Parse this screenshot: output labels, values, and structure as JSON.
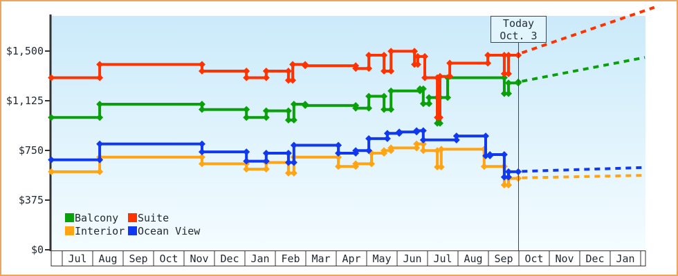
{
  "today_marker": {
    "line1": "Today",
    "line2": "Oct. 3"
  },
  "colors": {
    "frame": "#eca55e",
    "axis": "#333333",
    "grid_box": "#333333",
    "today_line": "#444444",
    "text": "#222933",
    "plot_bg_top": "#cbeafa",
    "plot_bg_bottom": "#f4fcff",
    "month_row_bg": "#ffffff"
  },
  "chart_data": {
    "type": "line",
    "subtype": "step-price-history-with-forecast",
    "title": "",
    "xlabel": "",
    "ylabel": "",
    "grid": false,
    "legend_position": "bottom-left",
    "x_unit": "months since first July tick (m=0 is Jul 1)",
    "today_m": 15.0,
    "ylim": [
      0,
      1766
    ],
    "y_ticks": [
      {
        "v": 0,
        "label": "$0"
      },
      {
        "v": 375,
        "label": "$375"
      },
      {
        "v": 750,
        "label": "$750"
      },
      {
        "v": 1125,
        "label": "$1,125"
      },
      {
        "v": 1500,
        "label": "$1,500"
      }
    ],
    "x_month_labels": [
      "Jul",
      "Aug",
      "Sep",
      "Oct",
      "Nov",
      "Dec",
      "Jan",
      "Feb",
      "Mar",
      "Apr",
      "May",
      "Jun",
      "Jul",
      "Aug",
      "Sep",
      "Oct",
      "Nov",
      "Dec",
      "Jan"
    ],
    "legend_order": [
      "Balcony",
      "Suite",
      "Interior",
      "Ocean View"
    ],
    "series": [
      {
        "name": "Interior",
        "color": "#ffa515",
        "points": [
          [
            -0.36,
            589
          ],
          [
            1.23,
            699
          ],
          [
            4.59,
            649
          ],
          [
            6.05,
            609
          ],
          [
            6.7,
            659
          ],
          [
            7.43,
            579
          ],
          [
            7.61,
            699
          ],
          [
            9.07,
            629
          ],
          [
            9.64,
            649
          ],
          [
            10.16,
            729
          ],
          [
            10.57,
            749
          ],
          [
            10.8,
            769
          ],
          [
            11.64,
            799
          ],
          [
            11.86,
            749
          ],
          [
            12.32,
            625
          ],
          [
            12.45,
            759
          ],
          [
            13.86,
            629
          ],
          [
            14.52,
            489
          ],
          [
            14.66,
            539
          ],
          [
            14.98,
            539
          ]
        ],
        "prediction": {
          "start": [
            15.1,
            543
          ],
          "end": [
            19.14,
            562
          ]
        }
      },
      {
        "name": "Ocean View",
        "color": "#1038ee",
        "points": [
          [
            -0.36,
            679
          ],
          [
            1.23,
            799
          ],
          [
            4.59,
            739
          ],
          [
            6.05,
            669
          ],
          [
            6.7,
            729
          ],
          [
            7.43,
            659
          ],
          [
            7.61,
            789
          ],
          [
            9.07,
            729
          ],
          [
            9.64,
            749
          ],
          [
            10.07,
            839
          ],
          [
            10.68,
            879
          ],
          [
            11.07,
            889
          ],
          [
            11.64,
            899
          ],
          [
            11.86,
            829
          ],
          [
            12.95,
            859
          ],
          [
            13.91,
            709
          ],
          [
            14.05,
            719
          ],
          [
            14.52,
            549
          ],
          [
            14.66,
            589
          ],
          [
            14.98,
            589
          ]
        ],
        "prediction": {
          "start": [
            15.1,
            592
          ],
          "end": [
            19.14,
            621
          ]
        }
      },
      {
        "name": "Balcony",
        "color": "#0aa00a",
        "points": [
          [
            -0.36,
            999
          ],
          [
            1.23,
            1099
          ],
          [
            4.59,
            1059
          ],
          [
            6.05,
            999
          ],
          [
            6.7,
            1049
          ],
          [
            7.43,
            979
          ],
          [
            7.61,
            1099
          ],
          [
            7.98,
            1089
          ],
          [
            9.64,
            1069
          ],
          [
            10.07,
            1159
          ],
          [
            10.57,
            1059
          ],
          [
            10.8,
            1199
          ],
          [
            11.75,
            1215
          ],
          [
            11.86,
            1103
          ],
          [
            12.05,
            1149
          ],
          [
            12.32,
            955
          ],
          [
            12.41,
            1149
          ],
          [
            12.66,
            1299
          ],
          [
            14.52,
            1179
          ],
          [
            14.66,
            1259
          ],
          [
            14.98,
            1267
          ]
        ],
        "prediction": {
          "start": [
            15.1,
            1272
          ],
          "end": [
            19.14,
            1452
          ]
        }
      },
      {
        "name": "Suite",
        "color": "#ff3300",
        "points": [
          [
            -0.36,
            1299
          ],
          [
            1.23,
            1399
          ],
          [
            4.59,
            1349
          ],
          [
            6.05,
            1299
          ],
          [
            6.7,
            1349
          ],
          [
            7.43,
            1279
          ],
          [
            7.57,
            1399
          ],
          [
            7.98,
            1389
          ],
          [
            9.64,
            1369
          ],
          [
            10.07,
            1469
          ],
          [
            10.57,
            1349
          ],
          [
            10.8,
            1499
          ],
          [
            11.57,
            1399
          ],
          [
            11.68,
            1459
          ],
          [
            11.91,
            1299
          ],
          [
            12.32,
            999
          ],
          [
            12.41,
            1309
          ],
          [
            12.73,
            1409
          ],
          [
            13.98,
            1469
          ],
          [
            14.52,
            1329
          ],
          [
            14.66,
            1469
          ],
          [
            14.98,
            1469
          ]
        ],
        "prediction": {
          "start": [
            15.1,
            1487
          ],
          "end": [
            19.45,
            1830
          ]
        }
      }
    ]
  }
}
